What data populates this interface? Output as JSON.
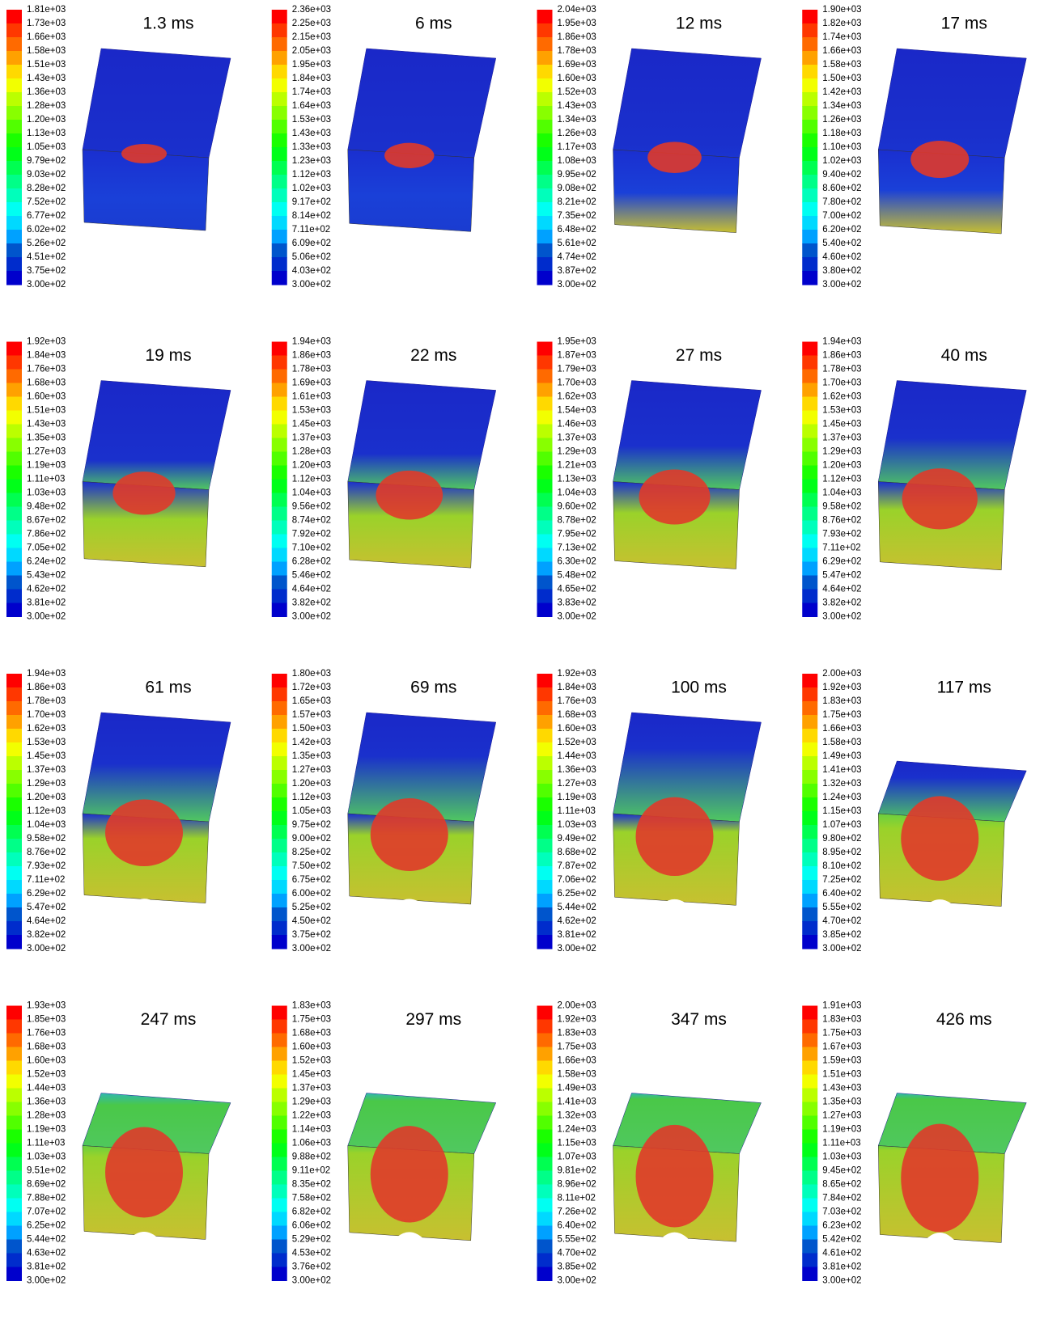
{
  "panels": [
    {
      "title": "1.3 ms",
      "scale": [
        "1.81e+03",
        "1.73e+03",
        "1.66e+03",
        "1.58e+03",
        "1.51e+03",
        "1.43e+03",
        "1.36e+03",
        "1.28e+03",
        "1.20e+03",
        "1.13e+03",
        "1.05e+03",
        "9.79e+02",
        "9.03e+02",
        "8.28e+02",
        "7.52e+02",
        "6.77e+02",
        "6.02e+02",
        "5.26e+02",
        "4.51e+02",
        "3.75e+02",
        "3.00e+02"
      ]
    },
    {
      "title": "6 ms",
      "scale": [
        "2.36e+03",
        "2.25e+03",
        "2.15e+03",
        "2.05e+03",
        "1.95e+03",
        "1.84e+03",
        "1.74e+03",
        "1.64e+03",
        "1.53e+03",
        "1.43e+03",
        "1.33e+03",
        "1.23e+03",
        "1.12e+03",
        "1.02e+03",
        "9.17e+02",
        "8.14e+02",
        "7.11e+02",
        "6.09e+02",
        "5.06e+02",
        "4.03e+02",
        "3.00e+02"
      ]
    },
    {
      "title": "12 ms",
      "scale": [
        "2.04e+03",
        "1.95e+03",
        "1.86e+03",
        "1.78e+03",
        "1.69e+03",
        "1.60e+03",
        "1.52e+03",
        "1.43e+03",
        "1.34e+03",
        "1.26e+03",
        "1.17e+03",
        "1.08e+03",
        "9.95e+02",
        "9.08e+02",
        "8.21e+02",
        "7.35e+02",
        "6.48e+02",
        "5.61e+02",
        "4.74e+02",
        "3.87e+02",
        "3.00e+02"
      ]
    },
    {
      "title": "17 ms",
      "scale": [
        "1.90e+03",
        "1.82e+03",
        "1.74e+03",
        "1.66e+03",
        "1.58e+03",
        "1.50e+03",
        "1.42e+03",
        "1.34e+03",
        "1.26e+03",
        "1.18e+03",
        "1.10e+03",
        "1.02e+03",
        "9.40e+02",
        "8.60e+02",
        "7.80e+02",
        "7.00e+02",
        "6.20e+02",
        "5.40e+02",
        "4.60e+02",
        "3.80e+02",
        "3.00e+02"
      ]
    },
    {
      "title": "19 ms",
      "scale": [
        "1.92e+03",
        "1.84e+03",
        "1.76e+03",
        "1.68e+03",
        "1.60e+03",
        "1.51e+03",
        "1.43e+03",
        "1.35e+03",
        "1.27e+03",
        "1.19e+03",
        "1.11e+03",
        "1.03e+03",
        "9.48e+02",
        "8.67e+02",
        "7.86e+02",
        "7.05e+02",
        "6.24e+02",
        "5.43e+02",
        "4.62e+02",
        "3.81e+02",
        "3.00e+02"
      ]
    },
    {
      "title": "22 ms",
      "scale": [
        "1.94e+03",
        "1.86e+03",
        "1.78e+03",
        "1.69e+03",
        "1.61e+03",
        "1.53e+03",
        "1.45e+03",
        "1.37e+03",
        "1.28e+03",
        "1.20e+03",
        "1.12e+03",
        "1.04e+03",
        "9.56e+02",
        "8.74e+02",
        "7.92e+02",
        "7.10e+02",
        "6.28e+02",
        "5.46e+02",
        "4.64e+02",
        "3.82e+02",
        "3.00e+02"
      ]
    },
    {
      "title": "27 ms",
      "scale": [
        "1.95e+03",
        "1.87e+03",
        "1.79e+03",
        "1.70e+03",
        "1.62e+03",
        "1.54e+03",
        "1.46e+03",
        "1.37e+03",
        "1.29e+03",
        "1.21e+03",
        "1.13e+03",
        "1.04e+03",
        "9.60e+02",
        "8.78e+02",
        "7.95e+02",
        "7.13e+02",
        "6.30e+02",
        "5.48e+02",
        "4.65e+02",
        "3.83e+02",
        "3.00e+02"
      ]
    },
    {
      "title": "40 ms",
      "scale": [
        "1.94e+03",
        "1.86e+03",
        "1.78e+03",
        "1.70e+03",
        "1.62e+03",
        "1.53e+03",
        "1.45e+03",
        "1.37e+03",
        "1.29e+03",
        "1.20e+03",
        "1.12e+03",
        "1.04e+03",
        "9.58e+02",
        "8.76e+02",
        "7.93e+02",
        "7.11e+02",
        "6.29e+02",
        "5.47e+02",
        "4.64e+02",
        "3.82e+02",
        "3.00e+02"
      ]
    },
    {
      "title": "61 ms",
      "scale": [
        "1.94e+03",
        "1.86e+03",
        "1.78e+03",
        "1.70e+03",
        "1.62e+03",
        "1.53e+03",
        "1.45e+03",
        "1.37e+03",
        "1.29e+03",
        "1.20e+03",
        "1.12e+03",
        "1.04e+03",
        "9.58e+02",
        "8.76e+02",
        "7.93e+02",
        "7.11e+02",
        "6.29e+02",
        "5.47e+02",
        "4.64e+02",
        "3.82e+02",
        "3.00e+02"
      ]
    },
    {
      "title": "69 ms",
      "scale": [
        "1.80e+03",
        "1.72e+03",
        "1.65e+03",
        "1.57e+03",
        "1.50e+03",
        "1.42e+03",
        "1.35e+03",
        "1.27e+03",
        "1.20e+03",
        "1.12e+03",
        "1.05e+03",
        "9.75e+02",
        "9.00e+02",
        "8.25e+02",
        "7.50e+02",
        "6.75e+02",
        "6.00e+02",
        "5.25e+02",
        "4.50e+02",
        "3.75e+02",
        "3.00e+02"
      ]
    },
    {
      "title": "100 ms",
      "scale": [
        "1.92e+03",
        "1.84e+03",
        "1.76e+03",
        "1.68e+03",
        "1.60e+03",
        "1.52e+03",
        "1.44e+03",
        "1.36e+03",
        "1.27e+03",
        "1.19e+03",
        "1.11e+03",
        "1.03e+03",
        "9.49e+02",
        "8.68e+02",
        "7.87e+02",
        "7.06e+02",
        "6.25e+02",
        "5.44e+02",
        "4.62e+02",
        "3.81e+02",
        "3.00e+02"
      ]
    },
    {
      "title": "117 ms",
      "scale": [
        "2.00e+03",
        "1.92e+03",
        "1.83e+03",
        "1.75e+03",
        "1.66e+03",
        "1.58e+03",
        "1.49e+03",
        "1.41e+03",
        "1.32e+03",
        "1.24e+03",
        "1.15e+03",
        "1.07e+03",
        "9.80e+02",
        "8.95e+02",
        "8.10e+02",
        "7.25e+02",
        "6.40e+02",
        "5.55e+02",
        "4.70e+02",
        "3.85e+02",
        "3.00e+02"
      ]
    },
    {
      "title": "247 ms",
      "scale": [
        "1.93e+03",
        "1.85e+03",
        "1.76e+03",
        "1.68e+03",
        "1.60e+03",
        "1.52e+03",
        "1.44e+03",
        "1.36e+03",
        "1.28e+03",
        "1.19e+03",
        "1.11e+03",
        "1.03e+03",
        "9.51e+02",
        "8.69e+02",
        "7.88e+02",
        "7.07e+02",
        "6.25e+02",
        "5.44e+02",
        "4.63e+02",
        "3.81e+02",
        "3.00e+02"
      ]
    },
    {
      "title": "297 ms",
      "scale": [
        "1.83e+03",
        "1.75e+03",
        "1.68e+03",
        "1.60e+03",
        "1.52e+03",
        "1.45e+03",
        "1.37e+03",
        "1.29e+03",
        "1.22e+03",
        "1.14e+03",
        "1.06e+03",
        "9.88e+02",
        "9.11e+02",
        "8.35e+02",
        "7.58e+02",
        "6.82e+02",
        "6.06e+02",
        "5.29e+02",
        "4.53e+02",
        "3.76e+02",
        "3.00e+02"
      ]
    },
    {
      "title": "347 ms",
      "scale": [
        "2.00e+03",
        "1.92e+03",
        "1.83e+03",
        "1.75e+03",
        "1.66e+03",
        "1.58e+03",
        "1.49e+03",
        "1.41e+03",
        "1.32e+03",
        "1.24e+03",
        "1.15e+03",
        "1.07e+03",
        "9.81e+02",
        "8.96e+02",
        "8.11e+02",
        "7.26e+02",
        "6.40e+02",
        "5.55e+02",
        "4.70e+02",
        "3.85e+02",
        "3.00e+02"
      ]
    },
    {
      "title": "426 ms",
      "scale": [
        "1.91e+03",
        "1.83e+03",
        "1.75e+03",
        "1.67e+03",
        "1.59e+03",
        "1.51e+03",
        "1.43e+03",
        "1.35e+03",
        "1.27e+03",
        "1.19e+03",
        "1.11e+03",
        "1.03e+03",
        "9.45e+02",
        "8.65e+02",
        "7.84e+02",
        "7.03e+02",
        "6.23e+02",
        "5.42e+02",
        "4.61e+02",
        "3.81e+02",
        "3.00e+02"
      ]
    }
  ]
}
